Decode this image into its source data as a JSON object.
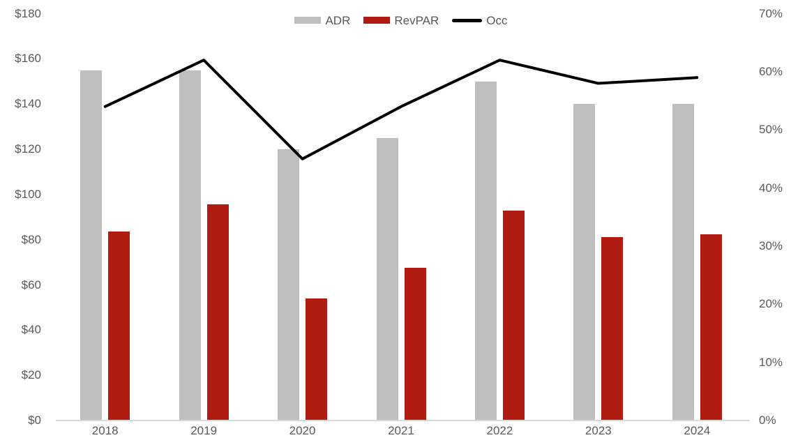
{
  "chart_data": {
    "type": "combo-bar-line",
    "title": "",
    "categories": [
      "2018",
      "2019",
      "2020",
      "2021",
      "2022",
      "2023",
      "2024"
    ],
    "series": [
      {
        "name": "ADR",
        "type": "bar",
        "axis": "left",
        "color": "#bfbfbf",
        "values": [
          155,
          155,
          120,
          125,
          150,
          140,
          140
        ]
      },
      {
        "name": "RevPAR",
        "type": "bar",
        "axis": "left",
        "color": "#b01c12",
        "values": [
          83.5,
          95.5,
          54,
          67.5,
          93,
          81,
          82.5
        ]
      },
      {
        "name": "Occ",
        "type": "line",
        "axis": "right",
        "color": "#000000",
        "values": [
          54,
          62,
          45,
          54,
          62,
          58,
          59
        ]
      }
    ],
    "left_axis": {
      "min": 0,
      "max": 180,
      "step": 20,
      "unit": "$",
      "labels": [
        "$0",
        "$20",
        "$40",
        "$60",
        "$80",
        "$100",
        "$120",
        "$140",
        "$160",
        "$180"
      ]
    },
    "right_axis": {
      "min": 0,
      "max": 70,
      "step": 10,
      "unit": "%",
      "labels": [
        "0%",
        "10%",
        "20%",
        "30%",
        "40%",
        "50%",
        "60%",
        "70%"
      ]
    },
    "grid": false,
    "legend_position": "top-center"
  },
  "colors": {
    "adr_bar": "#bfbfbf",
    "revpar_bar": "#b01c12",
    "occ_line": "#000000",
    "axis_text": "#595959",
    "axis_line": "#d9d9d9",
    "background": "#ffffff"
  }
}
